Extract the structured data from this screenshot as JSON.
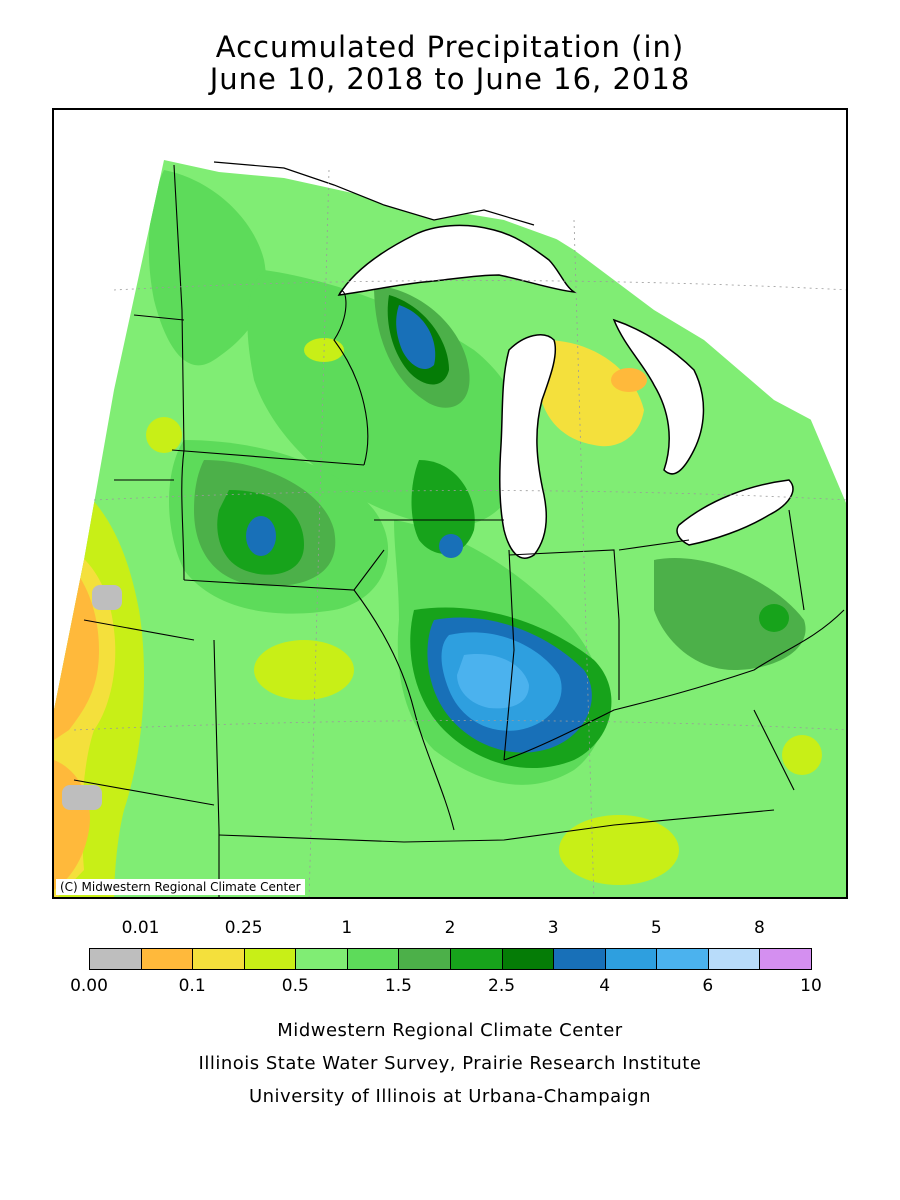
{
  "title": {
    "line1": "Accumulated Precipitation (in)",
    "line2": "June 10, 2018 to June 16, 2018"
  },
  "map": {
    "copyright": "(C) Midwestern Regional Climate Center",
    "region": "Upper Midwest (MN, WI, MI, IA, IL, IN, OH, MO, KY)",
    "base_color": "#80e870",
    "lake_color": "#ffffff",
    "boundary_color": "#000000"
  },
  "legend": {
    "top_labels": [
      "0.01",
      "0.25",
      "1",
      "2",
      "3",
      "5",
      "8"
    ],
    "bottom_labels": [
      "0.00",
      "0.1",
      "0.5",
      "1.5",
      "2.5",
      "4",
      "6",
      "10"
    ],
    "colors": [
      "#bebebe",
      "#ffb93b",
      "#f4e03c",
      "#c8ef17",
      "#80ed74",
      "#5ddb5a",
      "#4cb049",
      "#17a31b",
      "#057c06",
      "#1870b8",
      "#2e9fdf",
      "#4bb2ee",
      "#b8dcfa",
      "#d48ff0"
    ]
  },
  "credits": {
    "line1": "Midwestern Regional Climate Center",
    "line2": "Illinois State Water Survey, Prairie Research Institute",
    "line3": "University of Illinois at Urbana-Champaign"
  }
}
